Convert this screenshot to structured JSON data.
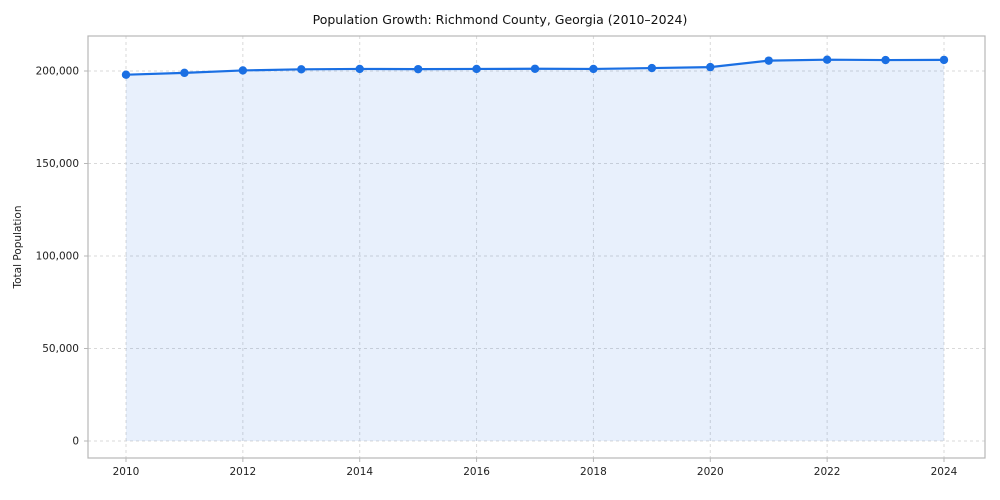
{
  "chart_data": {
    "type": "line",
    "title": "Population Growth: Richmond County, Georgia (2010–2024)",
    "xlabel": "",
    "ylabel": "Total Population",
    "x": [
      2010,
      2011,
      2012,
      2013,
      2014,
      2015,
      2016,
      2017,
      2018,
      2019,
      2020,
      2021,
      2022,
      2023,
      2024
    ],
    "values": [
      198000,
      199000,
      200300,
      200900,
      201100,
      201000,
      201100,
      201200,
      201100,
      201600,
      202100,
      205600,
      206100,
      205900,
      206000
    ],
    "x_ticks": [
      2010,
      2012,
      2014,
      2016,
      2018,
      2020,
      2022,
      2024
    ],
    "y_ticks": [
      0,
      50000,
      100000,
      150000,
      200000
    ],
    "ylim": [
      -10000,
      218000
    ],
    "xlim": [
      2009.3,
      2024.7
    ],
    "grid": "dashed-both-axes",
    "legend": "none",
    "line_color": "#1a6fe3",
    "fill_color_rgba": "rgba(26,111,227,0.10)",
    "marker": "circle",
    "grid_color": "#d9d9d9",
    "spine_color": "#b7b7b7",
    "background_color": "#ffffff"
  }
}
